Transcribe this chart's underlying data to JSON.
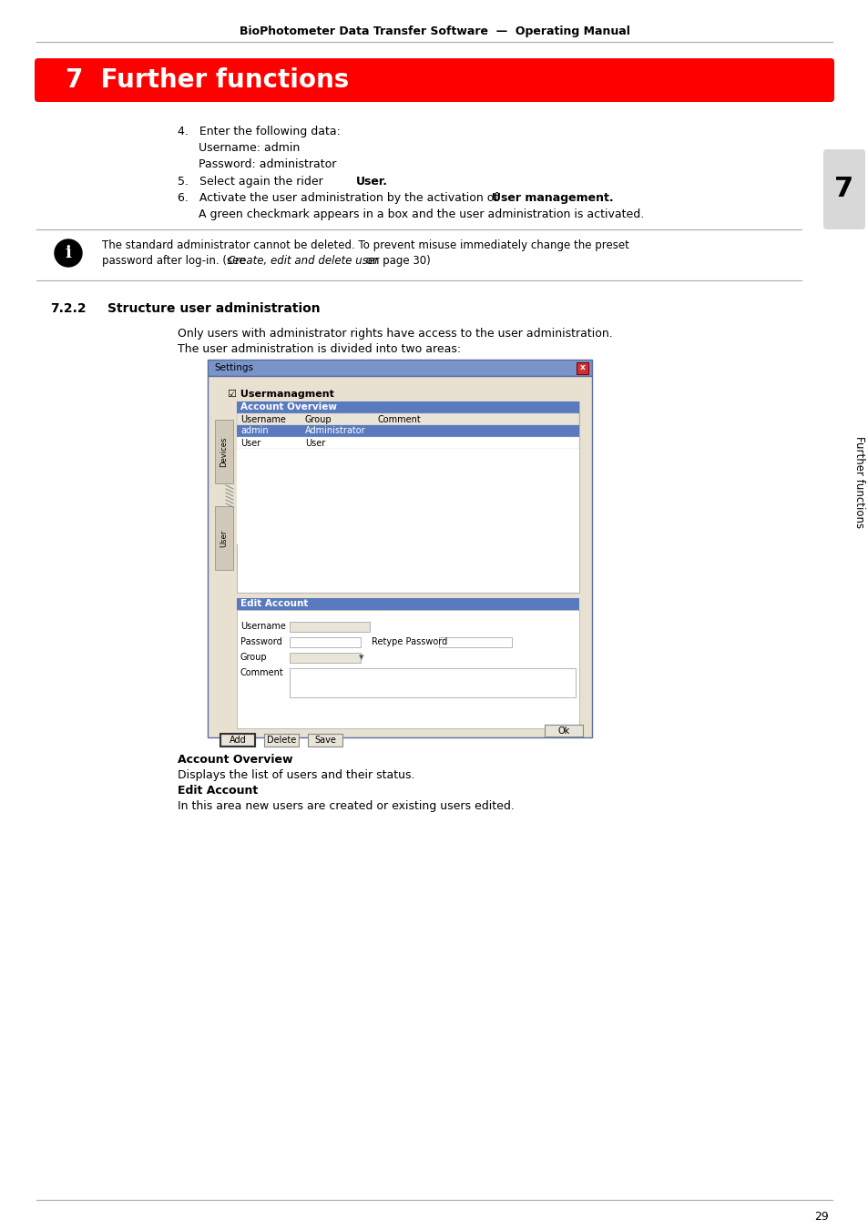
{
  "header_text": "BioPhotometer Data Transfer Software  —  Operating Manual",
  "chapter_title": "7  Further functions",
  "chapter_title_color": "#ffffff",
  "chapter_title_bg": "#ff0000",
  "chapter_num_sidebar": "7",
  "sidebar_label": "Further functions",
  "body_bg": "#ffffff",
  "step4_line1": "4.   Enter the following data:",
  "step4_line2": "Username: admin",
  "step4_line3": "Password: administrator",
  "step5_prefix": "5.   Select again the rider ",
  "step5_bold": "User",
  "step5_suffix": ".",
  "step6_prefix": "6.   Activate the user administration by the activation of  ",
  "step6_bold": "User management",
  "step6_suffix": ".",
  "step6b": "A green checkmark appears in a box and the user administration is activated.",
  "note_text1": "The standard administrator cannot be deleted. To prevent misuse immediately change the preset",
  "note_text2": "password after log-in. (see ",
  "note_italic": "Create, edit and delete user",
  "note_text3": " on page 30)",
  "section_num": "7.2.2",
  "section_title": "Structure user administration",
  "para1": "Only users with administrator rights have access to the user administration.",
  "para2": "The user administration is divided into two areas:",
  "dialog_title": "Settings",
  "dialog_bg": "#e8e0d0",
  "dialog_titlebar_bg": "#7a94c9",
  "dialog_border": "#5a6fa0",
  "checkbox_label": "Usermanagment",
  "table_header_bg": "#5a7abf",
  "table_header_text": "#ffffff",
  "col_username": "Username",
  "col_group": "Group",
  "col_comment": "Comment",
  "row1_user": "admin",
  "row1_group": "Administrator",
  "row1_bg": "#5a7abf",
  "row1_fg": "#ffffff",
  "row2_user": "User",
  "row2_group": "User",
  "row2_bg": "#ffffff",
  "edit_header": "Edit Account",
  "edit_header_bg": "#5a7abf",
  "field_username": "Username",
  "field_password": "Password",
  "field_retype": "Retype Password",
  "field_group": "Group",
  "field_comment": "Comment",
  "btn_add": "Add",
  "btn_delete": "Delete",
  "btn_save": "Save",
  "btn_ok": "Ok",
  "tab_devices": "Devices",
  "tab_user": "User",
  "account_overview_bold": "Account Overview",
  "account_overview_text": "Displays the list of users and their status.",
  "edit_account_bold": "Edit Account",
  "edit_account_text": "In this area new users are created or existing users edited.",
  "page_number": "29"
}
